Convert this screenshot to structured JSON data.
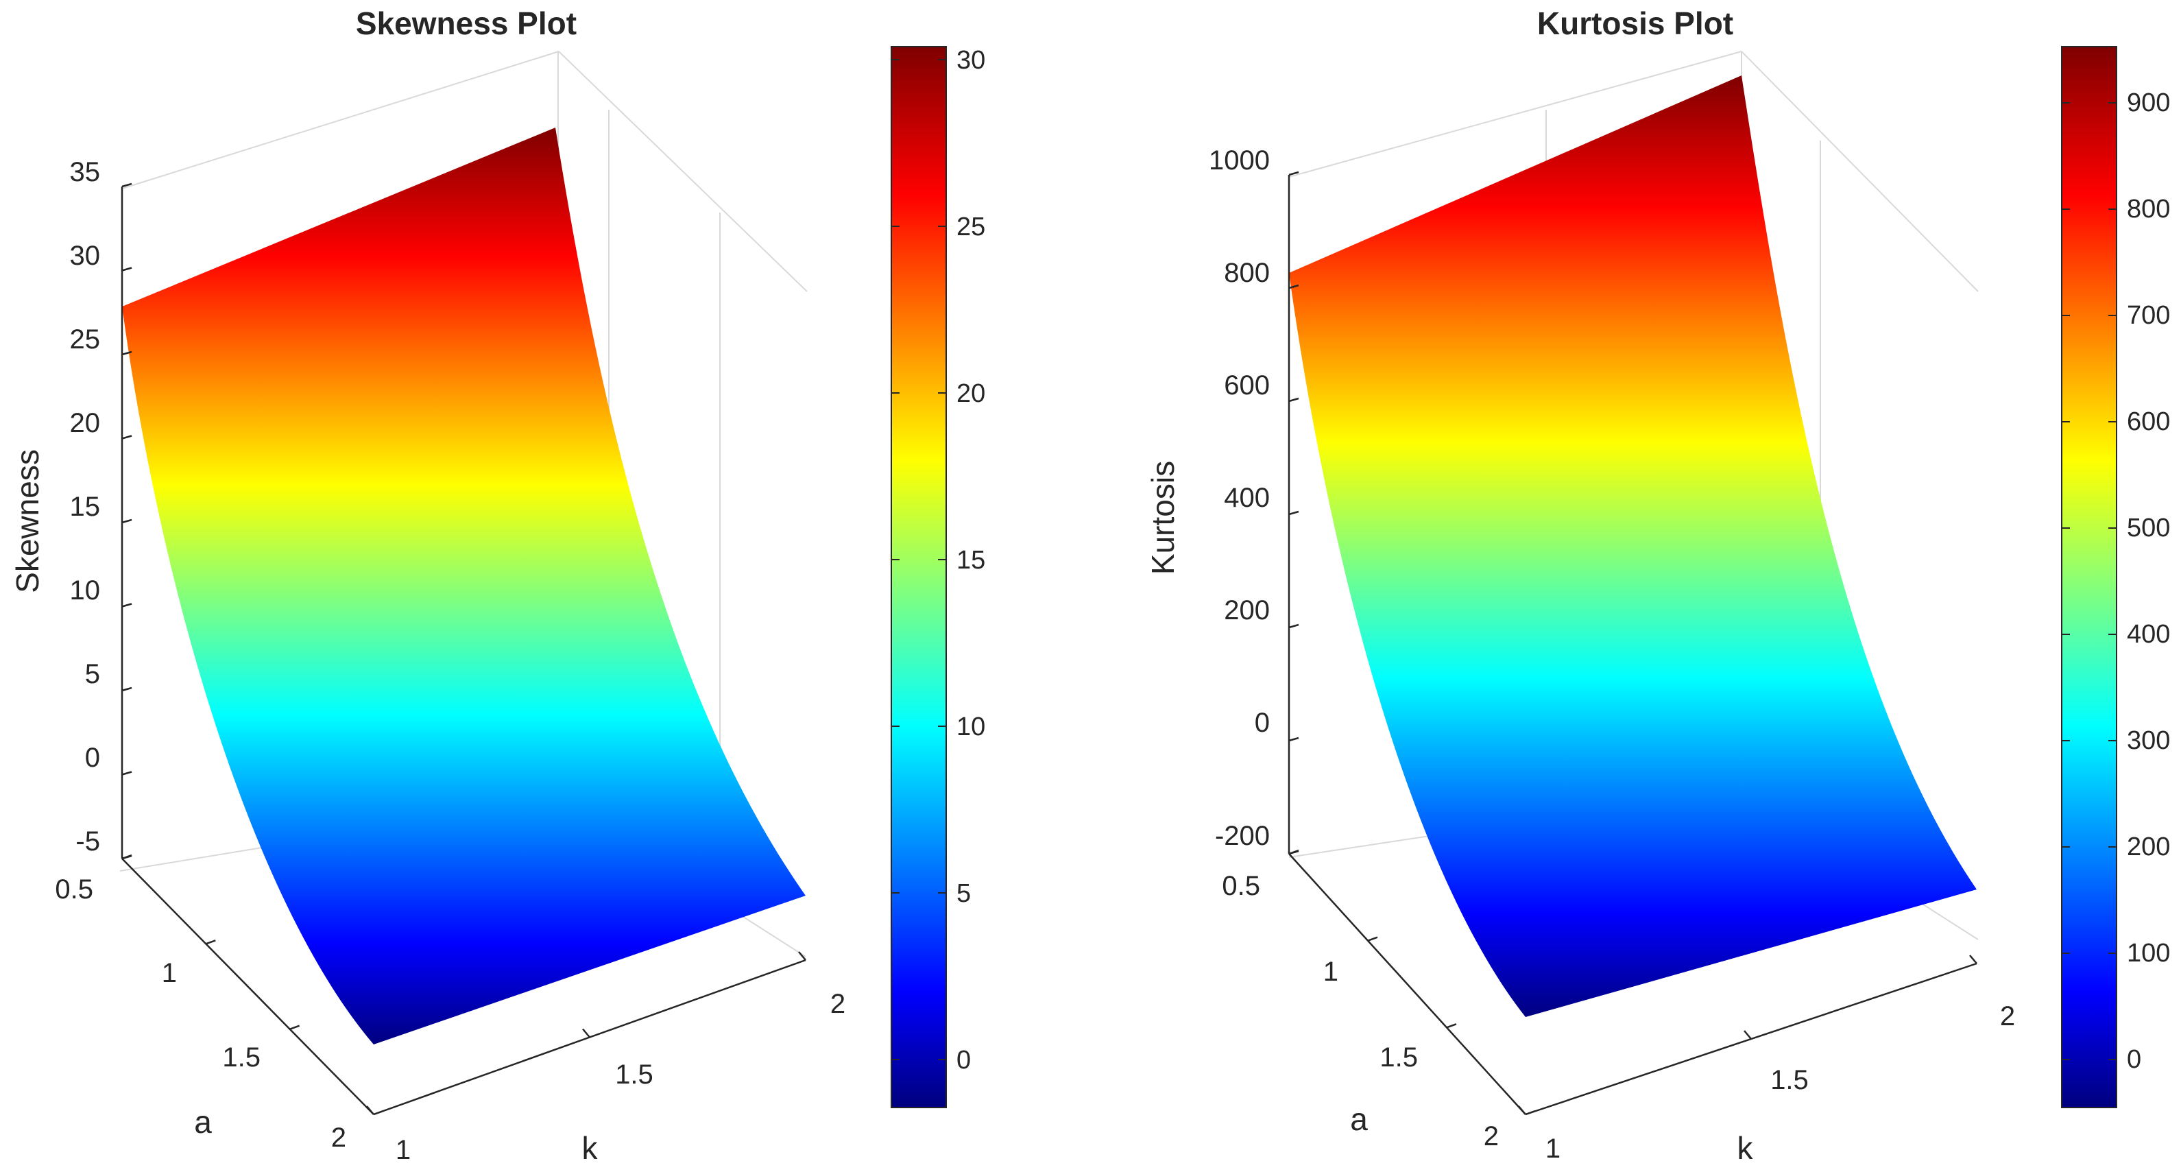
{
  "chart_data": [
    {
      "type": "surface",
      "title": "Skewness Plot",
      "xlabel": "k",
      "ylabel": "a",
      "zlabel": "Skewness",
      "x_ticks": [
        "1",
        "1.5",
        "2"
      ],
      "y_ticks": [
        "0.5",
        "1",
        "1.5",
        "2"
      ],
      "z_ticks": [
        "-5",
        "0",
        "5",
        "10",
        "15",
        "20",
        "25",
        "30",
        "35"
      ],
      "xlim": [
        1,
        2
      ],
      "ylim": [
        0.5,
        2
      ],
      "zlim": [
        -5,
        35
      ],
      "colormap": "jet",
      "colorbar_ticks": [
        "0",
        "5",
        "10",
        "15",
        "20",
        "25",
        "30"
      ],
      "colorbar_range": [
        -1.5,
        30.3
      ],
      "surface": {
        "a": [
          0.5,
          2
        ],
        "k": [
          1,
          2
        ],
        "z_k1": [
          27.5,
          0
        ],
        "z_k2": [
          30.2,
          0
        ]
      }
    },
    {
      "type": "surface",
      "title": "Kurtosis Plot",
      "xlabel": "k",
      "ylabel": "a",
      "zlabel": "Kurtosis",
      "x_ticks": [
        "1",
        "1.5",
        "2"
      ],
      "y_ticks": [
        "0.5",
        "1",
        "1.5",
        "2"
      ],
      "z_ticks": [
        "-200",
        "0",
        "200",
        "400",
        "600",
        "800",
        "1000"
      ],
      "xlim": [
        1,
        2
      ],
      "ylim": [
        0.5,
        2
      ],
      "zlim": [
        -200,
        1000
      ],
      "colormap": "jet",
      "colorbar_ticks": [
        "0",
        "100",
        "200",
        "300",
        "400",
        "500",
        "600",
        "700",
        "800",
        "900"
      ],
      "colorbar_range": [
        -45,
        950
      ],
      "surface": {
        "a": [
          0.5,
          2
        ],
        "k": [
          1,
          2
        ],
        "z_k1": [
          810,
          0
        ],
        "z_k2": [
          950,
          0
        ]
      }
    }
  ]
}
